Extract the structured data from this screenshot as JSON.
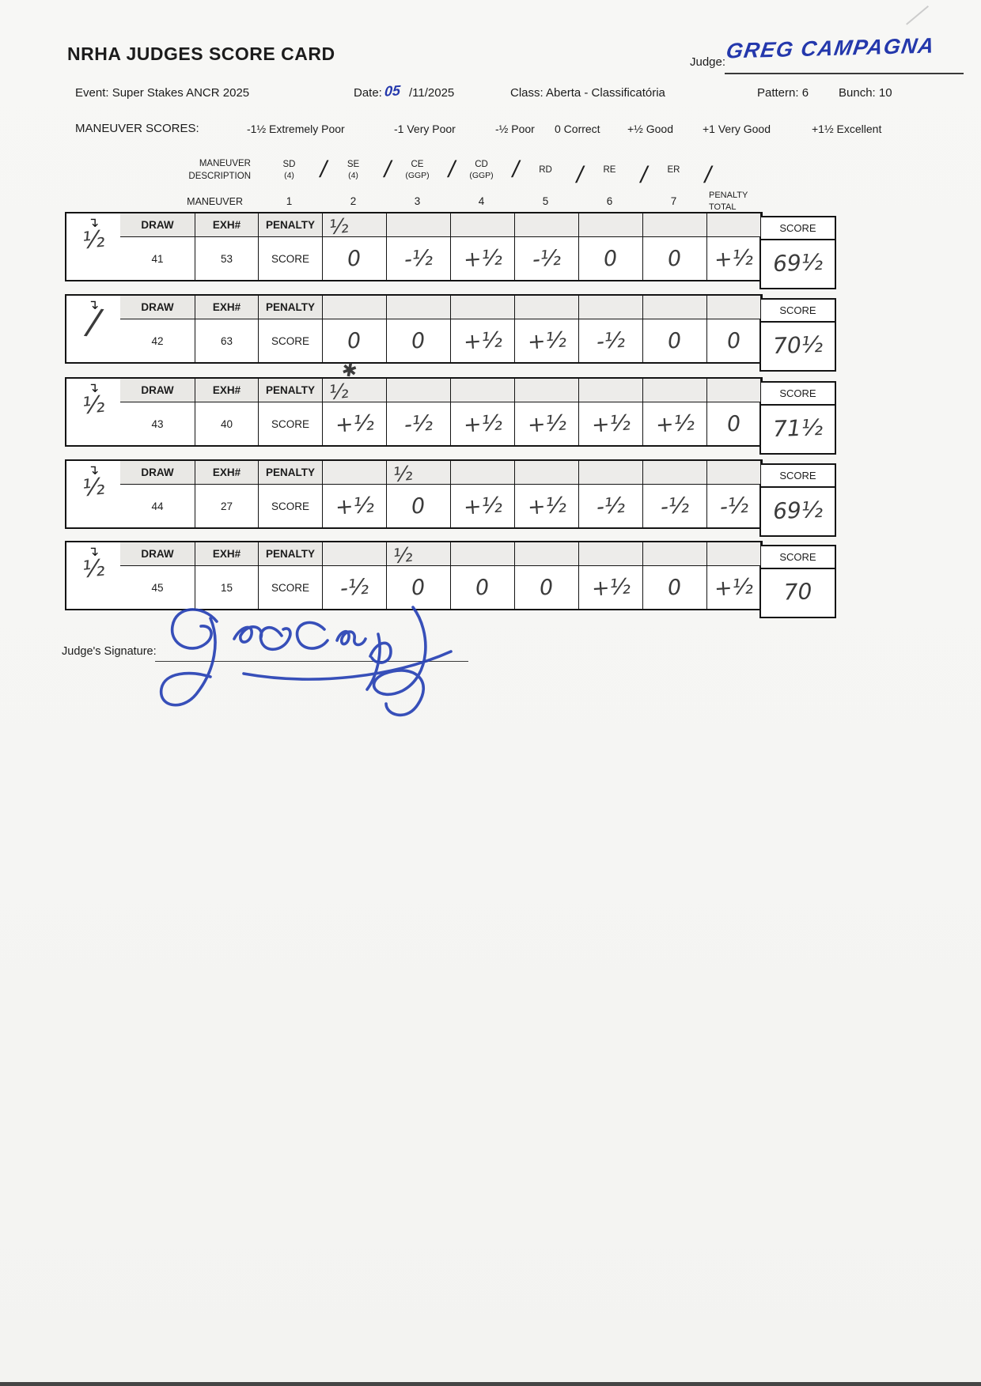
{
  "header": {
    "title": "NRHA JUDGES SCORE CARD",
    "judge_label": "Judge:",
    "judge_name": "GREG CAMPAGNA",
    "event": "Event: Super Stakes ANCR 2025",
    "date_label": "Date:",
    "date_day_handwritten": "05",
    "date_rest": "/11/2025",
    "class": "Class: Aberta - Classificatória",
    "pattern": "Pattern: 6",
    "bunch": "Bunch: 10"
  },
  "legend": {
    "label": "MANEUVER SCORES:",
    "items": [
      "-1½ Extremely Poor",
      "-1 Very Poor",
      "-½ Poor",
      "0 Correct",
      "+½ Good",
      "+1 Very Good",
      "+1½ Excellent"
    ]
  },
  "maneuver_header": {
    "description_lines": [
      "MANEUVER",
      "DESCRIPTION"
    ],
    "maneuvers": [
      {
        "code": "SD",
        "sub": "(4)"
      },
      {
        "code": "SE",
        "sub": "(4)"
      },
      {
        "code": "CE",
        "sub": "(GGP)"
      },
      {
        "code": "CD",
        "sub": "(GGP)"
      },
      {
        "code": "RD",
        "sub": ""
      },
      {
        "code": "RE",
        "sub": ""
      },
      {
        "code": "ER",
        "sub": ""
      }
    ],
    "slash": "/",
    "maneuver_label": "MANEUVER",
    "numbers": [
      "1",
      "2",
      "3",
      "4",
      "5",
      "6",
      "7"
    ],
    "penalty_total_lines": [
      "PENALTY",
      "TOTAL"
    ]
  },
  "table_labels": {
    "draw": "DRAW",
    "exh": "EXH#",
    "penalty": "PENALTY",
    "score_row_label": "SCORE",
    "score_box_label": "SCORE",
    "arrow_symbol": "↴"
  },
  "scorecards": [
    {
      "draw": "41",
      "exh": "53",
      "penalties": [
        "½",
        "",
        "",
        "",
        "",
        "",
        ""
      ],
      "scores": [
        "0",
        "-½",
        "+½",
        "-½",
        "0",
        "0",
        "+½"
      ],
      "penalty_total": "½",
      "total_score": "69½",
      "note": ""
    },
    {
      "draw": "42",
      "exh": "63",
      "penalties": [
        "",
        "",
        "",
        "",
        "",
        "",
        ""
      ],
      "scores": [
        "0",
        "0",
        "+½",
        "+½",
        "-½",
        "0",
        "0"
      ],
      "penalty_total": "/",
      "total_score": "70½",
      "note": "✱"
    },
    {
      "draw": "43",
      "exh": "40",
      "penalties": [
        "½",
        "",
        "",
        "",
        "",
        "",
        ""
      ],
      "scores": [
        "+½",
        "-½",
        "+½",
        "+½",
        "+½",
        "+½",
        "0"
      ],
      "penalty_total": "½",
      "total_score": "71½",
      "note": ""
    },
    {
      "draw": "44",
      "exh": "27",
      "penalties": [
        "",
        "½",
        "",
        "",
        "",
        "",
        ""
      ],
      "scores": [
        "+½",
        "0",
        "+½",
        "+½",
        "-½",
        "-½",
        "-½"
      ],
      "penalty_total": "½",
      "total_score": "69½",
      "note": ""
    },
    {
      "draw": "45",
      "exh": "15",
      "penalties": [
        "",
        "½",
        "",
        "",
        "",
        "",
        ""
      ],
      "scores": [
        "-½",
        "0",
        "0",
        "0",
        "+½",
        "0",
        "+½"
      ],
      "penalty_total": "½",
      "total_score": "70",
      "note": ""
    }
  ],
  "signature": {
    "label": "Judge's Signature:",
    "name": "Greg Campagna"
  }
}
